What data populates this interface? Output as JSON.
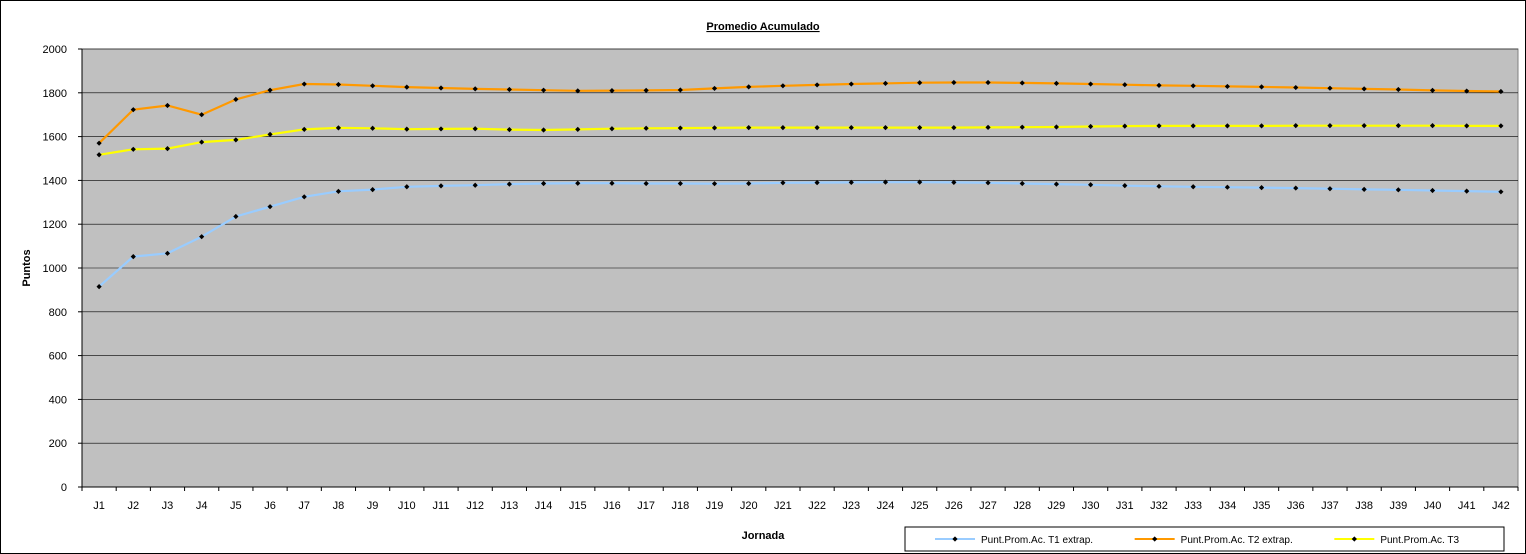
{
  "chart_data": {
    "type": "line",
    "title": "Promedio Acumulado",
    "xlabel": "Jornada",
    "ylabel": "Puntos",
    "ylim": [
      0,
      2000
    ],
    "yticks": [
      0,
      200,
      400,
      600,
      800,
      1000,
      1200,
      1400,
      1600,
      1800,
      2000
    ],
    "grid": true,
    "legend_position": "bottom-right",
    "plot_background": "#c0c0c0",
    "categories": [
      "J1",
      "J2",
      "J3",
      "J4",
      "J5",
      "J6",
      "J7",
      "J8",
      "J9",
      "J10",
      "J11",
      "J12",
      "J13",
      "J14",
      "J15",
      "J16",
      "J17",
      "J18",
      "J19",
      "J20",
      "J21",
      "J22",
      "J23",
      "J24",
      "J25",
      "J26",
      "J27",
      "J28",
      "J29",
      "J30",
      "J31",
      "J32",
      "J33",
      "J34",
      "J35",
      "J36",
      "J37",
      "J38",
      "J39",
      "J40",
      "J41",
      "J42"
    ],
    "series": [
      {
        "name": "Punt.Prom.Ac. T1 extrap.",
        "color": "#99ccff",
        "values": [
          915,
          1052,
          1067,
          1143,
          1235,
          1280,
          1325,
          1350,
          1358,
          1371,
          1375,
          1378,
          1383,
          1386,
          1387,
          1387,
          1386,
          1386,
          1385,
          1386,
          1389,
          1390,
          1391,
          1392,
          1392,
          1391,
          1389,
          1386,
          1383,
          1380,
          1376,
          1373,
          1371,
          1369,
          1367,
          1365,
          1362,
          1359,
          1357,
          1354,
          1351,
          1348
        ]
      },
      {
        "name": "Punt.Prom.Ac. T2 extrap.",
        "color": "#ff9900",
        "values": [
          1570,
          1723,
          1742,
          1700,
          1770,
          1812,
          1840,
          1838,
          1832,
          1826,
          1822,
          1818,
          1815,
          1812,
          1809,
          1810,
          1811,
          1813,
          1820,
          1827,
          1832,
          1836,
          1840,
          1843,
          1846,
          1847,
          1847,
          1845,
          1843,
          1840,
          1837,
          1834,
          1832,
          1829,
          1827,
          1824,
          1821,
          1818,
          1815,
          1811,
          1808,
          1806
        ]
      },
      {
        "name": "Punt.Prom.Ac. T3",
        "color": "#ffff00",
        "values": [
          1517,
          1542,
          1545,
          1575,
          1585,
          1610,
          1633,
          1640,
          1638,
          1634,
          1635,
          1636,
          1632,
          1630,
          1633,
          1636,
          1638,
          1639,
          1640,
          1641,
          1641,
          1641,
          1641,
          1641,
          1641,
          1641,
          1642,
          1643,
          1644,
          1646,
          1648,
          1649,
          1649,
          1649,
          1649,
          1650,
          1650,
          1650,
          1650,
          1650,
          1649,
          1649
        ]
      }
    ]
  }
}
